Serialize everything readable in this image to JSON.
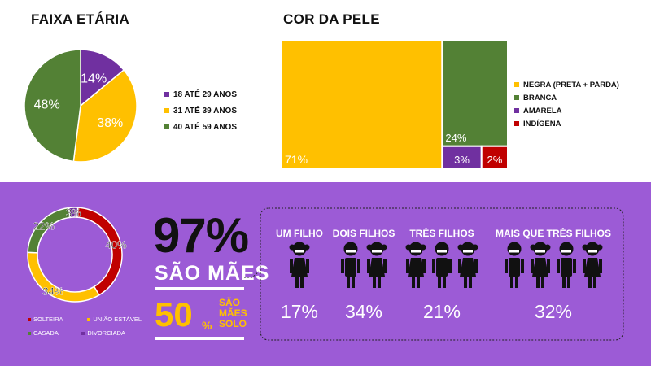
{
  "colors": {
    "yellow": "#FFC000",
    "green": "#538135",
    "purple": "#7030A0",
    "red": "#C00000",
    "panel": "#9C5BD6",
    "black": "#111111",
    "white": "#ffffff"
  },
  "top": {
    "age_title": "FAIXA ETÁRIA",
    "race_title": "COR DA PELE",
    "race_legend": [
      "NEGRA (PRETA + PARDA)",
      "BRANCA",
      "AMARELA",
      "INDÍGENA"
    ]
  },
  "mothers": {
    "big_pct": "97%",
    "big_label": "SÃO MÃES",
    "solo_pct": "50",
    "solo_sign": "%",
    "solo_label_1": "SÃO",
    "solo_label_2": "MÃES",
    "solo_label_3": "SOLO"
  },
  "children": {
    "groups": [
      {
        "label": "UM FILHO",
        "pct": "17%",
        "count": 1
      },
      {
        "label": "DOIS FILHOS",
        "pct": "34%",
        "count": 2
      },
      {
        "label": "TRÊS FILHOS",
        "pct": "21%",
        "count": 3
      },
      {
        "label": "MAIS QUE TRÊS FILHOS",
        "pct": "32%",
        "count": 4
      }
    ]
  },
  "chart_data": [
    {
      "type": "pie",
      "title": "FAIXA ETÁRIA",
      "slices": [
        {
          "label": "18 ATÉ 29 ANOS",
          "value": 14,
          "display": "14%",
          "color": "#7030A0"
        },
        {
          "label": "31 ATÉ 39 ANOS",
          "value": 38,
          "display": "38%",
          "color": "#FFC000"
        },
        {
          "label": "40 ATÉ 59 ANOS",
          "value": 48,
          "display": "48%",
          "color": "#538135"
        }
      ],
      "legend": "right"
    },
    {
      "type": "treemap",
      "title": "COR DA PELE",
      "items": [
        {
          "label": "NEGRA (PRETA + PARDA)",
          "value": 71,
          "display": "71%",
          "color": "#FFC000"
        },
        {
          "label": "BRANCA",
          "value": 24,
          "display": "24%",
          "color": "#538135"
        },
        {
          "label": "AMARELA",
          "value": 3,
          "display": "3%",
          "color": "#7030A0"
        },
        {
          "label": "INDÍGENA",
          "value": 2,
          "display": "2%",
          "color": "#C00000"
        }
      ],
      "legend": "right"
    },
    {
      "type": "donut",
      "slices": [
        {
          "label": "SOLTEIRA",
          "value": 40,
          "display": "40%",
          "color": "#C00000"
        },
        {
          "label": "UNIÃO ESTÁVEL",
          "value": 34,
          "display": "34%",
          "color": "#FFC000"
        },
        {
          "label": "CASADA",
          "value": 22,
          "display": "22%",
          "color": "#538135"
        },
        {
          "label": "DIVORCIADA",
          "value": 3,
          "display": "3%",
          "color": "#7030A0"
        }
      ]
    }
  ]
}
